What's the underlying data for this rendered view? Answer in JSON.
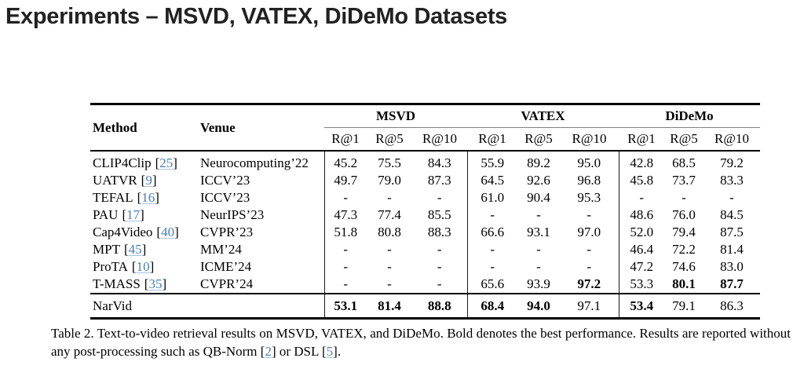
{
  "title": "Experiments – MSVD, VATEX, DiDeMo Datasets",
  "table": {
    "headers": {
      "method": "Method",
      "venue": "Venue"
    },
    "groups": [
      {
        "label": "MSVD",
        "metrics": [
          "R@1",
          "R@5",
          "R@10"
        ]
      },
      {
        "label": "VATEX",
        "metrics": [
          "R@1",
          "R@5",
          "R@10"
        ]
      },
      {
        "label": "DiDeMo",
        "metrics": [
          "R@1",
          "R@5",
          "R@10"
        ]
      }
    ],
    "citation_brackets": {
      "open": "[",
      "close": "]"
    },
    "rows": [
      {
        "method": "CLIP4Clip",
        "cite": "25",
        "venue": "Neurocomputing’22",
        "values": [
          "45.2",
          "75.5",
          "84.3",
          "55.9",
          "89.2",
          "95.0",
          "42.8",
          "68.5",
          "79.2"
        ],
        "bold": []
      },
      {
        "method": "UATVR",
        "cite": "9",
        "venue": "ICCV’23",
        "values": [
          "49.7",
          "79.0",
          "87.3",
          "64.5",
          "92.6",
          "96.8",
          "45.8",
          "73.7",
          "83.3"
        ],
        "bold": []
      },
      {
        "method": "TEFAL",
        "cite": "16",
        "venue": "ICCV’23",
        "values": [
          "-",
          "-",
          "-",
          "61.0",
          "90.4",
          "95.3",
          "-",
          "-",
          "-"
        ],
        "bold": []
      },
      {
        "method": "PAU",
        "cite": "17",
        "venue": "NeurIPS’23",
        "values": [
          "47.3",
          "77.4",
          "85.5",
          "-",
          "-",
          "-",
          "48.6",
          "76.0",
          "84.5"
        ],
        "bold": []
      },
      {
        "method": "Cap4Video",
        "cite": "40",
        "venue": "CVPR’23",
        "values": [
          "51.8",
          "80.8",
          "88.3",
          "66.6",
          "93.1",
          "97.0",
          "52.0",
          "79.4",
          "87.5"
        ],
        "bold": []
      },
      {
        "method": "MPT",
        "cite": "45",
        "venue": "MM’24",
        "values": [
          "-",
          "-",
          "-",
          "-",
          "-",
          "-",
          "46.4",
          "72.2",
          "81.4"
        ],
        "bold": []
      },
      {
        "method": "ProTA",
        "cite": "10",
        "venue": "ICME’24",
        "values": [
          "-",
          "-",
          "-",
          "-",
          "-",
          "-",
          "47.2",
          "74.6",
          "83.0"
        ],
        "bold": []
      },
      {
        "method": "T-MASS",
        "cite": "35",
        "venue": "CVPR’24",
        "values": [
          "-",
          "-",
          "-",
          "65.6",
          "93.9",
          "97.2",
          "53.3",
          "80.1",
          "87.7"
        ],
        "bold": [
          5,
          7,
          8
        ]
      },
      {
        "method": "NarVid",
        "cite": null,
        "venue": "",
        "final": true,
        "values": [
          "53.1",
          "81.4",
          "88.8",
          "68.4",
          "94.0",
          "97.1",
          "53.4",
          "79.1",
          "86.3"
        ],
        "bold": [
          0,
          1,
          2,
          3,
          4,
          6
        ]
      }
    ]
  },
  "caption": {
    "line1": "Table 2. Text-to-video retrieval results on MSVD, VATEX, and DiDeMo. Bold denotes the best performance. Results are reported without",
    "line2_pre": "any post-processing such as QB-Norm [",
    "cite1": "2",
    "line2_mid": "] or DSL [",
    "cite2": "5",
    "line2_end": "]."
  },
  "colors": {
    "link_blue": "#4a7ebc",
    "title_dark": "#222222"
  }
}
